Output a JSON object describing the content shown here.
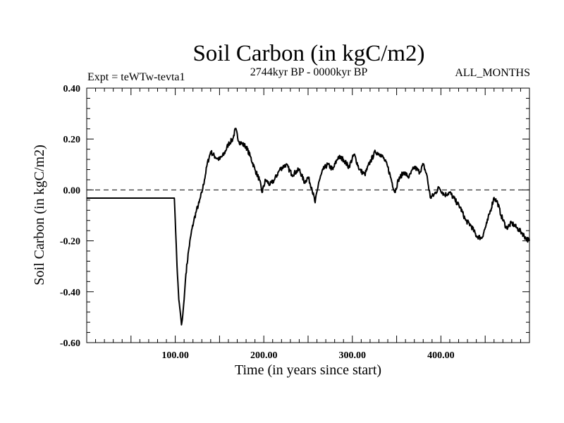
{
  "chart_data": {
    "type": "line",
    "title": "Soil Carbon (in kgC/m2)",
    "subtitle": "2744kyr BP - 0000kyr BP",
    "experiment": "Expt = teWTw-tevta1",
    "season": "ALL_MONTHS",
    "xlabel": "Time (in years since start)",
    "ylabel": "Soil Carbon (in kgC/m2)",
    "xlim": [
      0,
      500
    ],
    "ylim": [
      -0.6,
      0.4
    ],
    "xticks": [
      100,
      200,
      300,
      400
    ],
    "xtick_labels": [
      "100.00",
      "200.00",
      "300.00",
      "400.00"
    ],
    "yticks": [
      0.4,
      0.2,
      0.0,
      -0.2,
      -0.4,
      -0.6
    ],
    "ytick_labels": [
      "0.40",
      "0.20",
      "0.00",
      "-0.20",
      "-0.40",
      "-0.60"
    ],
    "reference_line": {
      "y": 0.0,
      "style": "dashed"
    },
    "series": [
      {
        "name": "Soil Carbon",
        "x": [
          0,
          99,
          100,
          102,
          104,
          106,
          107,
          108,
          110,
          112,
          115,
          118,
          121,
          124,
          127,
          130,
          133,
          136,
          140,
          145,
          150,
          155,
          160,
          165,
          168,
          172,
          176,
          180,
          185,
          190,
          195,
          198,
          202,
          207,
          212,
          218,
          225,
          232,
          240,
          246,
          250,
          254,
          258,
          262,
          267,
          272,
          278,
          284,
          290,
          296,
          302,
          308,
          314,
          320,
          326,
          332,
          336,
          340,
          344,
          348,
          352,
          358,
          364,
          370,
          376,
          380,
          384,
          388,
          392,
          398,
          404,
          410,
          416,
          422,
          428,
          434,
          440,
          446,
          452,
          456,
          460,
          464,
          468,
          474,
          480,
          486,
          492,
          496,
          500
        ],
        "y": [
          -0.032,
          -0.032,
          -0.12,
          -0.3,
          -0.43,
          -0.49,
          -0.53,
          -0.51,
          -0.43,
          -0.33,
          -0.24,
          -0.17,
          -0.12,
          -0.08,
          -0.05,
          -0.01,
          0.04,
          0.1,
          0.15,
          0.13,
          0.12,
          0.14,
          0.18,
          0.2,
          0.24,
          0.19,
          0.18,
          0.17,
          0.13,
          0.08,
          0.04,
          -0.01,
          0.04,
          0.02,
          0.04,
          0.08,
          0.1,
          0.06,
          0.08,
          0.03,
          0.05,
          0.01,
          -0.05,
          0.03,
          0.08,
          0.1,
          0.08,
          0.13,
          0.12,
          0.09,
          0.14,
          0.08,
          0.06,
          0.11,
          0.15,
          0.14,
          0.12,
          0.09,
          0.04,
          -0.01,
          0.04,
          0.07,
          0.05,
          0.09,
          0.07,
          0.1,
          0.06,
          -0.03,
          -0.02,
          0.01,
          -0.02,
          -0.01,
          -0.04,
          -0.07,
          -0.12,
          -0.14,
          -0.18,
          -0.19,
          -0.13,
          -0.08,
          -0.03,
          -0.05,
          -0.1,
          -0.15,
          -0.13,
          -0.15,
          -0.17,
          -0.19,
          -0.2
        ]
      }
    ]
  }
}
